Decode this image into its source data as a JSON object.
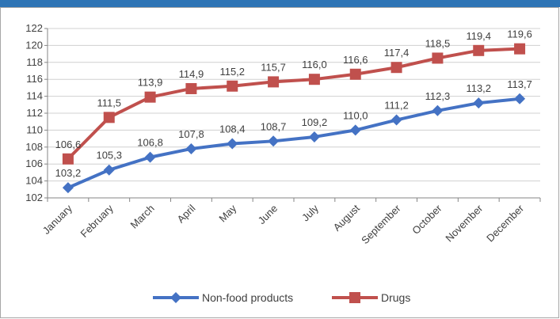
{
  "chart_data": {
    "type": "line",
    "title": "",
    "xlabel": "",
    "ylabel": "",
    "categories": [
      "January",
      "February",
      "March",
      "April",
      "May",
      "June",
      "July",
      "August",
      "September",
      "October",
      "November",
      "December"
    ],
    "ylim": [
      102,
      122
    ],
    "yticks": [
      "102",
      "104",
      "106",
      "108",
      "110",
      "112",
      "114",
      "116",
      "118",
      "120",
      "122"
    ],
    "grid": true,
    "legend_position": "bottom",
    "series": [
      {
        "name": "Non-food products",
        "color": "#4472c4",
        "marker": "diamond",
        "values": [
          103.2,
          105.3,
          106.8,
          107.8,
          108.4,
          108.7,
          109.2,
          110.0,
          111.2,
          112.3,
          113.2,
          113.7
        ],
        "labels": [
          "103,2",
          "105,3",
          "106,8",
          "107,8",
          "108,4",
          "108,7",
          "109,2",
          "110,0",
          "111,2",
          "112,3",
          "113,2",
          "113,7"
        ]
      },
      {
        "name": "Drugs",
        "color": "#c0504d",
        "marker": "square",
        "values": [
          106.6,
          111.5,
          113.9,
          114.9,
          115.2,
          115.7,
          116.0,
          116.6,
          117.4,
          118.5,
          119.4,
          119.6
        ],
        "labels": [
          "106,6",
          "111,5",
          "113,9",
          "114,9",
          "115,2",
          "115,7",
          "116,0",
          "116,6",
          "117,4",
          "118,5",
          "119,4",
          "119,6"
        ]
      }
    ]
  }
}
